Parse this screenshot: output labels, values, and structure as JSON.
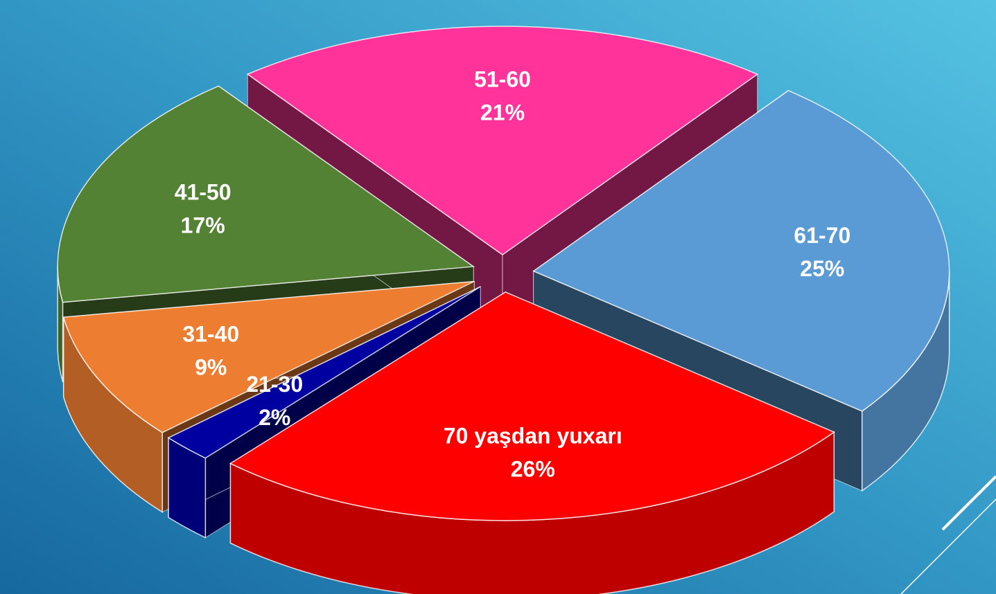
{
  "chart_data": {
    "type": "pie",
    "categories": [
      "51-60",
      "61-70",
      "70 yaşdan yuxarı",
      "21-30",
      "31-40",
      "41-50"
    ],
    "values": [
      21,
      25,
      26,
      2,
      9,
      17
    ],
    "value_labels": [
      "21%",
      "25%",
      "26%",
      "2%",
      "9%",
      "17%"
    ],
    "colors": [
      "#ff3399",
      "#5b9bd5",
      "#ff0000",
      "#0000a0",
      "#ed7d31",
      "#548235"
    ]
  }
}
